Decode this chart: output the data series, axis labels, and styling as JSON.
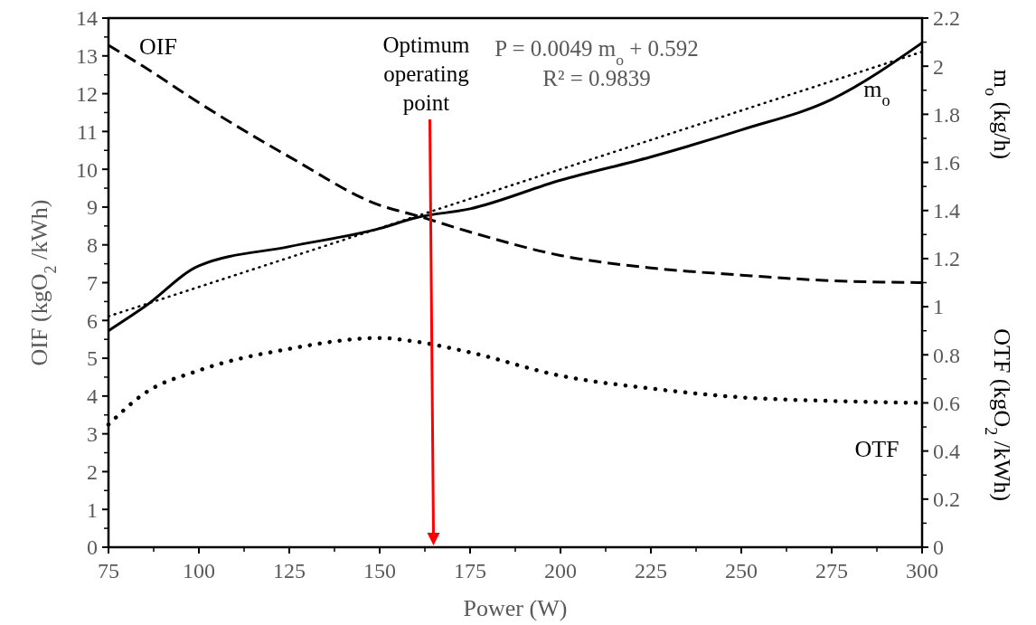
{
  "chart_data": {
    "type": "line",
    "xlabel": "Power (W)",
    "ylabel": "OIF (kgO$_{2}$/kWh)",
    "y2label": "m$_{o}$ (kg/h)",
    "x": [
      75,
      85,
      100,
      125,
      150,
      160,
      175,
      200,
      225,
      250,
      275,
      300
    ],
    "series": [
      {
        "name": "OIF",
        "color": "#000000",
        "line_style": "dashed",
        "values": [
          13.28,
          12.7,
          11.76,
          10.33,
          9.05,
          8.78,
          8.34,
          7.72,
          7.39,
          7.2,
          7.05,
          7.0
        ]
      },
      {
        "name": "m$_{o}$",
        "color": "#000000",
        "line_style": "solid",
        "axis": "y2",
        "values": [
          0.9,
          1.0,
          1.17,
          1.25,
          1.325,
          1.37,
          1.407,
          1.526,
          1.623,
          1.735,
          1.862,
          2.097
        ]
      },
      {
        "type": "line",
        "color": "#000000",
        "line_style": "dotted",
        "axis": "y2",
        "x": [
          75,
          300
        ],
        "values": [
          0.96,
          2.06
        ]
      },
      {
        "name": "OTF",
        "color": "#000000",
        "line_style": "dotted",
        "axis": "y2",
        "values": [
          0.51,
          0.64,
          0.735,
          0.825,
          0.87,
          0.855,
          0.81,
          0.713,
          0.66,
          0.623,
          0.608,
          0.6
        ]
      }
    ],
    "xlim": [
      75,
      300
    ],
    "xticks": [
      75,
      100,
      125,
      150,
      175,
      200,
      225,
      250,
      275,
      300
    ],
    "ylim": [
      0,
      14
    ],
    "yticks": [
      0,
      1,
      2,
      3,
      4,
      5,
      6,
      7,
      8,
      9,
      10,
      11,
      12,
      13,
      14
    ],
    "y2lim": [
      0,
      2.2
    ],
    "y2ticks": [
      0,
      0.2,
      0.4,
      0.6,
      0.8,
      1,
      1.2,
      1.4,
      1.6,
      1.8,
      2,
      2.2
    ],
    "grid": false,
    "annotations": [
      "Optimum operating point",
      "P = 0.0049 m$_{o}$ + 0.592",
      "R² = 0.9839",
      "OTF (kgO$_{2}$/kWh)"
    ]
  }
}
